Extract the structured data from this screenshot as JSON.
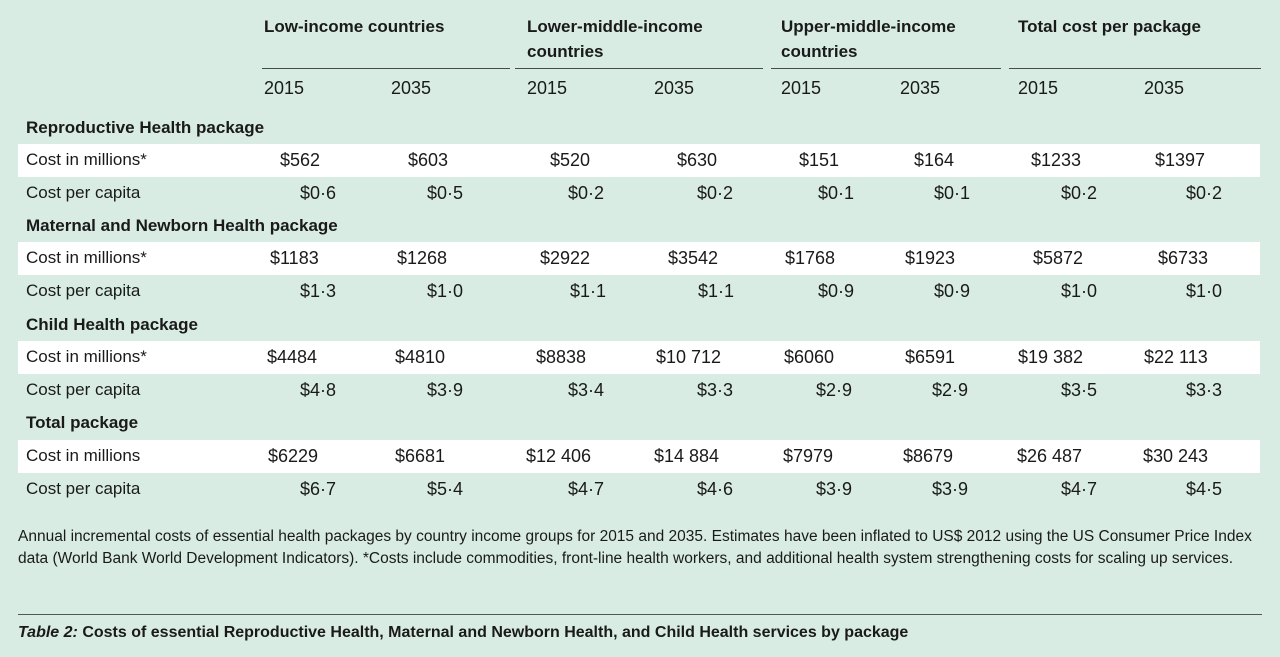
{
  "groups": [
    {
      "label": "Low-income countries"
    },
    {
      "label": "Lower-middle-income countries"
    },
    {
      "label": "Upper-middle-income countries"
    },
    {
      "label": "Total cost per package"
    }
  ],
  "years": [
    "2015",
    "2035",
    "2015",
    "2035",
    "2015",
    "2035",
    "2015",
    "2035"
  ],
  "sections": [
    {
      "title": "Reproductive Health package",
      "rows": [
        {
          "label": "Cost in millions*",
          "values": [
            "$562",
            "$603",
            "$520",
            "$630",
            "$151",
            "$164",
            "$1233",
            "$1397"
          ]
        },
        {
          "label": "Cost per capita",
          "values": [
            "$0·6",
            "$0·5",
            "$0·2",
            "$0·2",
            "$0·1",
            "$0·1",
            "$0·2",
            "$0·2"
          ]
        }
      ]
    },
    {
      "title": "Maternal and Newborn Health package",
      "rows": [
        {
          "label": "Cost in millions*",
          "values": [
            "$1183",
            "$1268",
            "$2922",
            "$3542",
            "$1768",
            "$1923",
            "$5872",
            "$6733"
          ]
        },
        {
          "label": "Cost per capita",
          "values": [
            "$1·3",
            "$1·0",
            "$1·1",
            "$1·1",
            "$0·9",
            "$0·9",
            "$1·0",
            "$1·0"
          ]
        }
      ]
    },
    {
      "title": "Child Health package",
      "rows": [
        {
          "label": "Cost in millions*",
          "values": [
            "$4484",
            "$4810",
            "$8838",
            "$10 712",
            "$6060",
            "$6591",
            "$19 382",
            "$22 113"
          ]
        },
        {
          "label": "Cost per capita",
          "values": [
            "$4·8",
            "$3·9",
            "$3·4",
            "$3·3",
            "$2·9",
            "$2·9",
            "$3·5",
            "$3·3"
          ]
        }
      ]
    },
    {
      "title": "Total package",
      "rows": [
        {
          "label": "Cost in millions",
          "values": [
            "$6229",
            "$6681",
            "$12 406",
            "$14 884",
            "$7979",
            "$8679",
            "$26 487",
            "$30 243"
          ]
        },
        {
          "label": "Cost per capita",
          "values": [
            "$6·7",
            "$5·4",
            "$4·7",
            "$4·6",
            "$3·9",
            "$3·9",
            "$4·7",
            "$4·5"
          ]
        }
      ]
    }
  ],
  "caption": "Annual incremental costs of essential health packages by country income groups for 2015 and 2035. Estimates have been inflated to US$ 2012 using the US Consumer Price Index data (World Bank World Development Indicators). *Costs include commodities, front-line health workers, and additional health system strengthening costs for scaling up services.",
  "table_title": {
    "lead": "Table 2:",
    "text": "Costs of essential Reproductive Health, Maternal and Newborn Health, and Child Health services by package"
  },
  "colors": {
    "background": "#d8ece4",
    "row_highlight": "#ffffff",
    "text": "#1a1a1a"
  }
}
